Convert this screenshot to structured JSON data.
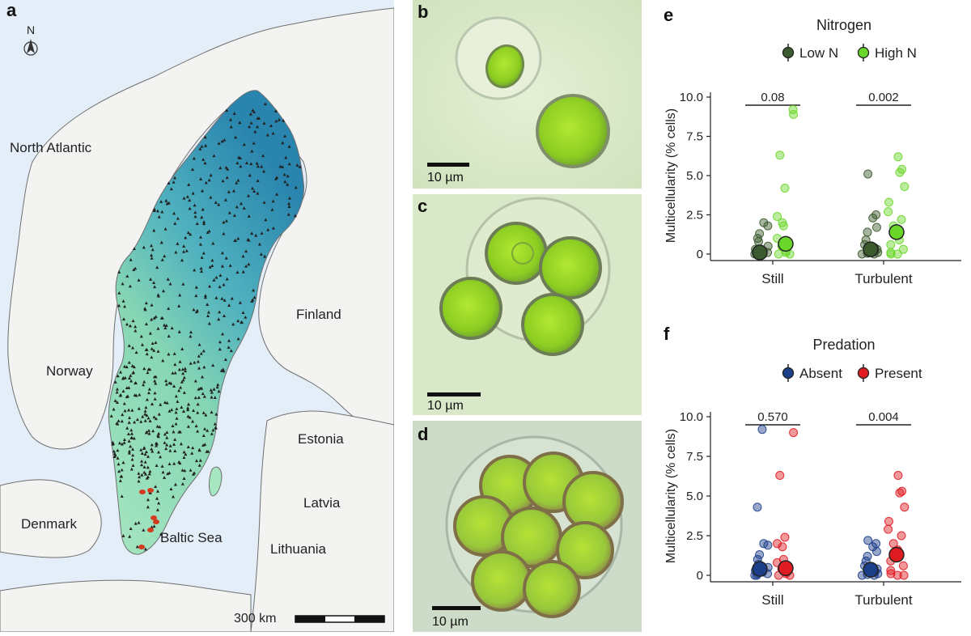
{
  "map": {
    "letter": "a",
    "compass": "N",
    "labels": {
      "north_atlantic": "North Atlantic",
      "norway": "Norway",
      "finland": "Finland",
      "estonia": "Estonia",
      "latvia": "Latvia",
      "lithuania": "Lithuania",
      "denmark": "Denmark",
      "baltic": "Baltic Sea"
    },
    "scale": "300 km",
    "colors": {
      "sea": "#e4eef8",
      "land": "#f3f3f1",
      "border": "#6f6f6f",
      "sweden_low": "#9fe2b8",
      "sweden_high": "#2f8fb6",
      "sites": "#222222",
      "red_sites": "#d43a1e"
    }
  },
  "micrographs": [
    {
      "letter": "b",
      "scale": "10 µm"
    },
    {
      "letter": "c",
      "scale": "10 µm"
    },
    {
      "letter": "d",
      "scale": "10 µm"
    }
  ],
  "chart_data": [
    {
      "letter": "e",
      "type": "scatter",
      "title": "Nitrogen",
      "ylabel": "Multicellularity (% cells)",
      "categories": [
        "Still",
        "Turbulent"
      ],
      "ylim": [
        0,
        10
      ],
      "yticks": [
        "0",
        "2.5",
        "5.0",
        "7.5",
        "10.0"
      ],
      "ytick_values": [
        0,
        2.5,
        5,
        7.5,
        10
      ],
      "legend_placement": "top",
      "pvalues": [
        "0.08",
        "0.002"
      ],
      "series": [
        {
          "name": "Low N",
          "color": "#3b5a2d",
          "points": [
            [
              0,
              0
            ],
            [
              0,
              0
            ],
            [
              0,
              0.1
            ],
            [
              0,
              0.1
            ],
            [
              0,
              0.2
            ],
            [
              0,
              0.3
            ],
            [
              0,
              0.5
            ],
            [
              0,
              0.8
            ],
            [
              0,
              1.0
            ],
            [
              0,
              1.3
            ],
            [
              0,
              1.8
            ],
            [
              0,
              2.0
            ],
            [
              0,
              0.05
            ],
            [
              0,
              0.15
            ],
            [
              1,
              0
            ],
            [
              1,
              0
            ],
            [
              1,
              0.1
            ],
            [
              1,
              0.2
            ],
            [
              1,
              0.3
            ],
            [
              1,
              0.6
            ],
            [
              1,
              0.9
            ],
            [
              1,
              1.4
            ],
            [
              1,
              1.7
            ],
            [
              1,
              2.3
            ],
            [
              1,
              2.5
            ],
            [
              1,
              5.1
            ],
            [
              1,
              0.05
            ],
            [
              1,
              0.4
            ]
          ],
          "means": [
            0.1,
            0.3
          ]
        },
        {
          "name": "High N",
          "color": "#6ad62a",
          "points": [
            [
              0,
              0
            ],
            [
              0,
              0
            ],
            [
              0,
              0.1
            ],
            [
              0,
              0.2
            ],
            [
              0,
              0.5
            ],
            [
              0,
              0.8
            ],
            [
              0,
              1.0
            ],
            [
              0,
              1.8
            ],
            [
              0,
              2.0
            ],
            [
              0,
              2.4
            ],
            [
              0,
              4.2
            ],
            [
              0,
              6.3
            ],
            [
              0,
              8.9
            ],
            [
              0,
              9.2
            ],
            [
              1,
              0
            ],
            [
              1,
              0
            ],
            [
              1,
              0.1
            ],
            [
              1,
              0.3
            ],
            [
              1,
              0.6
            ],
            [
              1,
              0.9
            ],
            [
              1,
              1.3
            ],
            [
              1,
              1.8
            ],
            [
              1,
              2.2
            ],
            [
              1,
              2.7
            ],
            [
              1,
              3.3
            ],
            [
              1,
              4.3
            ],
            [
              1,
              5.2
            ],
            [
              1,
              5.4
            ],
            [
              1,
              6.2
            ]
          ],
          "means": [
            0.65,
            1.4
          ]
        }
      ]
    },
    {
      "letter": "f",
      "type": "scatter",
      "title": "Predation",
      "ylabel": "Multicellularity (% cells)",
      "categories": [
        "Still",
        "Turbulent"
      ],
      "ylim": [
        0,
        10
      ],
      "yticks": [
        "0",
        "2.5",
        "5.0",
        "7.5",
        "10.0"
      ],
      "ytick_values": [
        0,
        2.5,
        5,
        7.5,
        10
      ],
      "legend_placement": "top",
      "pvalues": [
        "0.570",
        "0.004"
      ],
      "series": [
        {
          "name": "Absent",
          "color": "#1c3f8a",
          "points": [
            [
              0,
              0
            ],
            [
              0,
              0
            ],
            [
              0,
              0.1
            ],
            [
              0,
              0.1
            ],
            [
              0,
              0.2
            ],
            [
              0,
              0.3
            ],
            [
              0,
              0.5
            ],
            [
              0,
              0.7
            ],
            [
              0,
              1.0
            ],
            [
              0,
              1.3
            ],
            [
              0,
              1.9
            ],
            [
              0,
              2.0
            ],
            [
              0,
              4.3
            ],
            [
              0,
              9.2
            ],
            [
              1,
              0
            ],
            [
              1,
              0
            ],
            [
              1,
              0.1
            ],
            [
              1,
              0.2
            ],
            [
              1,
              0.4
            ],
            [
              1,
              0.6
            ],
            [
              1,
              0.9
            ],
            [
              1,
              1.2
            ],
            [
              1,
              1.5
            ],
            [
              1,
              1.8
            ],
            [
              1,
              2.0
            ],
            [
              1,
              2.2
            ],
            [
              1,
              0.05
            ],
            [
              1,
              0.3
            ]
          ],
          "means": [
            0.4,
            0.35
          ]
        },
        {
          "name": "Present",
          "color": "#e01b22",
          "points": [
            [
              0,
              0
            ],
            [
              0,
              0
            ],
            [
              0,
              0.1
            ],
            [
              0,
              0.2
            ],
            [
              0,
              0.4
            ],
            [
              0,
              0.6
            ],
            [
              0,
              0.8
            ],
            [
              0,
              1.0
            ],
            [
              0,
              1.8
            ],
            [
              0,
              2.0
            ],
            [
              0,
              2.4
            ],
            [
              0,
              6.3
            ],
            [
              0,
              9.0
            ],
            [
              1,
              0
            ],
            [
              1,
              0
            ],
            [
              1,
              0.1
            ],
            [
              1,
              0.3
            ],
            [
              1,
              0.6
            ],
            [
              1,
              0.9
            ],
            [
              1,
              1.2
            ],
            [
              1,
              1.6
            ],
            [
              1,
              2.0
            ],
            [
              1,
              2.5
            ],
            [
              1,
              2.9
            ],
            [
              1,
              3.4
            ],
            [
              1,
              4.3
            ],
            [
              1,
              5.2
            ],
            [
              1,
              5.3
            ],
            [
              1,
              6.3
            ]
          ],
          "means": [
            0.45,
            1.3
          ]
        }
      ]
    }
  ]
}
